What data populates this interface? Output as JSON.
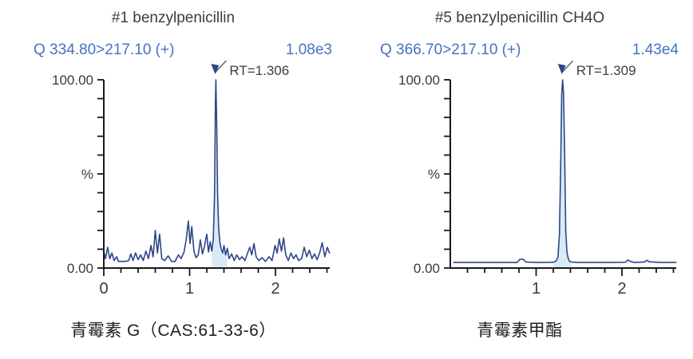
{
  "colors": {
    "trace": "#2d4687",
    "peak_fill": "#d9eaf7",
    "q_blue": "#4472c4",
    "title_gray": "#3d3d3d",
    "axis_line": "#1a1a1a",
    "axis_label": "#333a46",
    "rt_text": "#3d3d3d",
    "flag_line": "#5a5a5a"
  },
  "chart_data": [
    {
      "type": "line",
      "title": "#1 benzylpenicillin",
      "transition": "Q 334.80>217.10 (+)",
      "intensity": "1.08e3",
      "caption": "青霉素 G（CAS:61-33-6）",
      "ylabel": "%",
      "y_tick_labels": {
        "top": "100.00",
        "mid": "%",
        "bottom": "0.00"
      },
      "ylim": [
        0,
        100
      ],
      "xlim": [
        0,
        2.63
      ],
      "x_first_tick": 0,
      "x_minor_tick_step": 0.2,
      "x_major_ticks": [
        0,
        1,
        2
      ],
      "annotation": {
        "x": 1.306,
        "label": "RT=1.306"
      },
      "fill_range": [
        1.258,
        1.44
      ],
      "points": [
        [
          0,
          9
        ],
        [
          0.02,
          5
        ],
        [
          0.045,
          11
        ],
        [
          0.07,
          5
        ],
        [
          0.095,
          8
        ],
        [
          0.12,
          4
        ],
        [
          0.15,
          6
        ],
        [
          0.17,
          3.5
        ],
        [
          0.21,
          3.5
        ],
        [
          0.25,
          3.5
        ],
        [
          0.29,
          4
        ],
        [
          0.315,
          7.5
        ],
        [
          0.34,
          4
        ],
        [
          0.37,
          8
        ],
        [
          0.4,
          4.5
        ],
        [
          0.43,
          7
        ],
        [
          0.46,
          4
        ],
        [
          0.49,
          9
        ],
        [
          0.52,
          5
        ],
        [
          0.55,
          12
        ],
        [
          0.575,
          6
        ],
        [
          0.6,
          20
        ],
        [
          0.625,
          8
        ],
        [
          0.65,
          18
        ],
        [
          0.675,
          5
        ],
        [
          0.71,
          4
        ],
        [
          0.75,
          6.5
        ],
        [
          0.79,
          3.5
        ],
        [
          0.83,
          3.5
        ],
        [
          0.87,
          7
        ],
        [
          0.9,
          5
        ],
        [
          0.935,
          8.5
        ],
        [
          0.96,
          15
        ],
        [
          0.985,
          25
        ],
        [
          1.005,
          13
        ],
        [
          1.025,
          22
        ],
        [
          1.05,
          9
        ],
        [
          1.075,
          5.5
        ],
        [
          1.1,
          7
        ],
        [
          1.125,
          15
        ],
        [
          1.15,
          7.5
        ],
        [
          1.175,
          12
        ],
        [
          1.2,
          18
        ],
        [
          1.22,
          8.5
        ],
        [
          1.24,
          14
        ],
        [
          1.258,
          9
        ],
        [
          1.275,
          15
        ],
        [
          1.29,
          38
        ],
        [
          1.3,
          88
        ],
        [
          1.306,
          100
        ],
        [
          1.316,
          75
        ],
        [
          1.326,
          40
        ],
        [
          1.338,
          22
        ],
        [
          1.352,
          14
        ],
        [
          1.368,
          10
        ],
        [
          1.385,
          8
        ],
        [
          1.4,
          12
        ],
        [
          1.42,
          7
        ],
        [
          1.44,
          10.5
        ],
        [
          1.46,
          5
        ],
        [
          1.49,
          7.5
        ],
        [
          1.52,
          4
        ],
        [
          1.55,
          7
        ],
        [
          1.58,
          4.5
        ],
        [
          1.61,
          6
        ],
        [
          1.645,
          4
        ],
        [
          1.675,
          8
        ],
        [
          1.7,
          11
        ],
        [
          1.725,
          7
        ],
        [
          1.75,
          13
        ],
        [
          1.775,
          6
        ],
        [
          1.805,
          4
        ],
        [
          1.845,
          5.5
        ],
        [
          1.885,
          3.5
        ],
        [
          1.925,
          6
        ],
        [
          1.96,
          4
        ],
        [
          1.995,
          12
        ],
        [
          2.02,
          8
        ],
        [
          2.045,
          15.5
        ],
        [
          2.07,
          9
        ],
        [
          2.095,
          16
        ],
        [
          2.12,
          7
        ],
        [
          2.15,
          4
        ],
        [
          2.18,
          8
        ],
        [
          2.21,
          5
        ],
        [
          2.24,
          7
        ],
        [
          2.27,
          4
        ],
        [
          2.305,
          5
        ],
        [
          2.335,
          11
        ],
        [
          2.365,
          6
        ],
        [
          2.395,
          9.5
        ],
        [
          2.425,
          5
        ],
        [
          2.455,
          7.5
        ],
        [
          2.485,
          4.5
        ],
        [
          2.515,
          8
        ],
        [
          2.545,
          13.5
        ],
        [
          2.575,
          6
        ],
        [
          2.605,
          11
        ],
        [
          2.63,
          8
        ]
      ]
    },
    {
      "type": "line",
      "title": "#5 benzylpenicillin CH4O",
      "transition": "Q 366.70>217.10 (+)",
      "intensity": "1.43e4",
      "caption": "青霉素甲酯",
      "ylabel": "%",
      "y_tick_labels": {
        "top": "100.00",
        "mid": "%",
        "bottom": "0.00"
      },
      "ylim": [
        0,
        100
      ],
      "xlim": [
        0,
        2.63
      ],
      "x_first_tick": 0.2,
      "x_minor_tick_step": 0.2,
      "x_major_ticks": [
        1,
        2
      ],
      "annotation": {
        "x": 1.309,
        "label": "RT=1.309"
      },
      "fill_range": [
        1.2,
        1.42
      ],
      "points": [
        [
          0.04,
          3
        ],
        [
          0.2,
          3
        ],
        [
          0.4,
          3
        ],
        [
          0.6,
          3
        ],
        [
          0.78,
          3
        ],
        [
          0.81,
          4.6
        ],
        [
          0.85,
          4.6
        ],
        [
          0.88,
          3.2
        ],
        [
          1,
          3
        ],
        [
          1.1,
          3
        ],
        [
          1.2,
          3.1
        ],
        [
          1.235,
          3.8
        ],
        [
          1.255,
          6
        ],
        [
          1.272,
          18
        ],
        [
          1.288,
          60
        ],
        [
          1.298,
          92
        ],
        [
          1.309,
          100
        ],
        [
          1.319,
          93
        ],
        [
          1.332,
          62
        ],
        [
          1.345,
          20
        ],
        [
          1.36,
          8
        ],
        [
          1.375,
          5
        ],
        [
          1.39,
          3.6
        ],
        [
          1.41,
          3.2
        ],
        [
          1.5,
          3
        ],
        [
          1.7,
          3
        ],
        [
          1.9,
          3
        ],
        [
          2.04,
          3.1
        ],
        [
          2.07,
          4.3
        ],
        [
          2.1,
          3.5
        ],
        [
          2.14,
          3
        ],
        [
          2.26,
          3.2
        ],
        [
          2.29,
          4.1
        ],
        [
          2.32,
          3.3
        ],
        [
          2.45,
          3
        ],
        [
          2.63,
          3
        ]
      ]
    }
  ]
}
